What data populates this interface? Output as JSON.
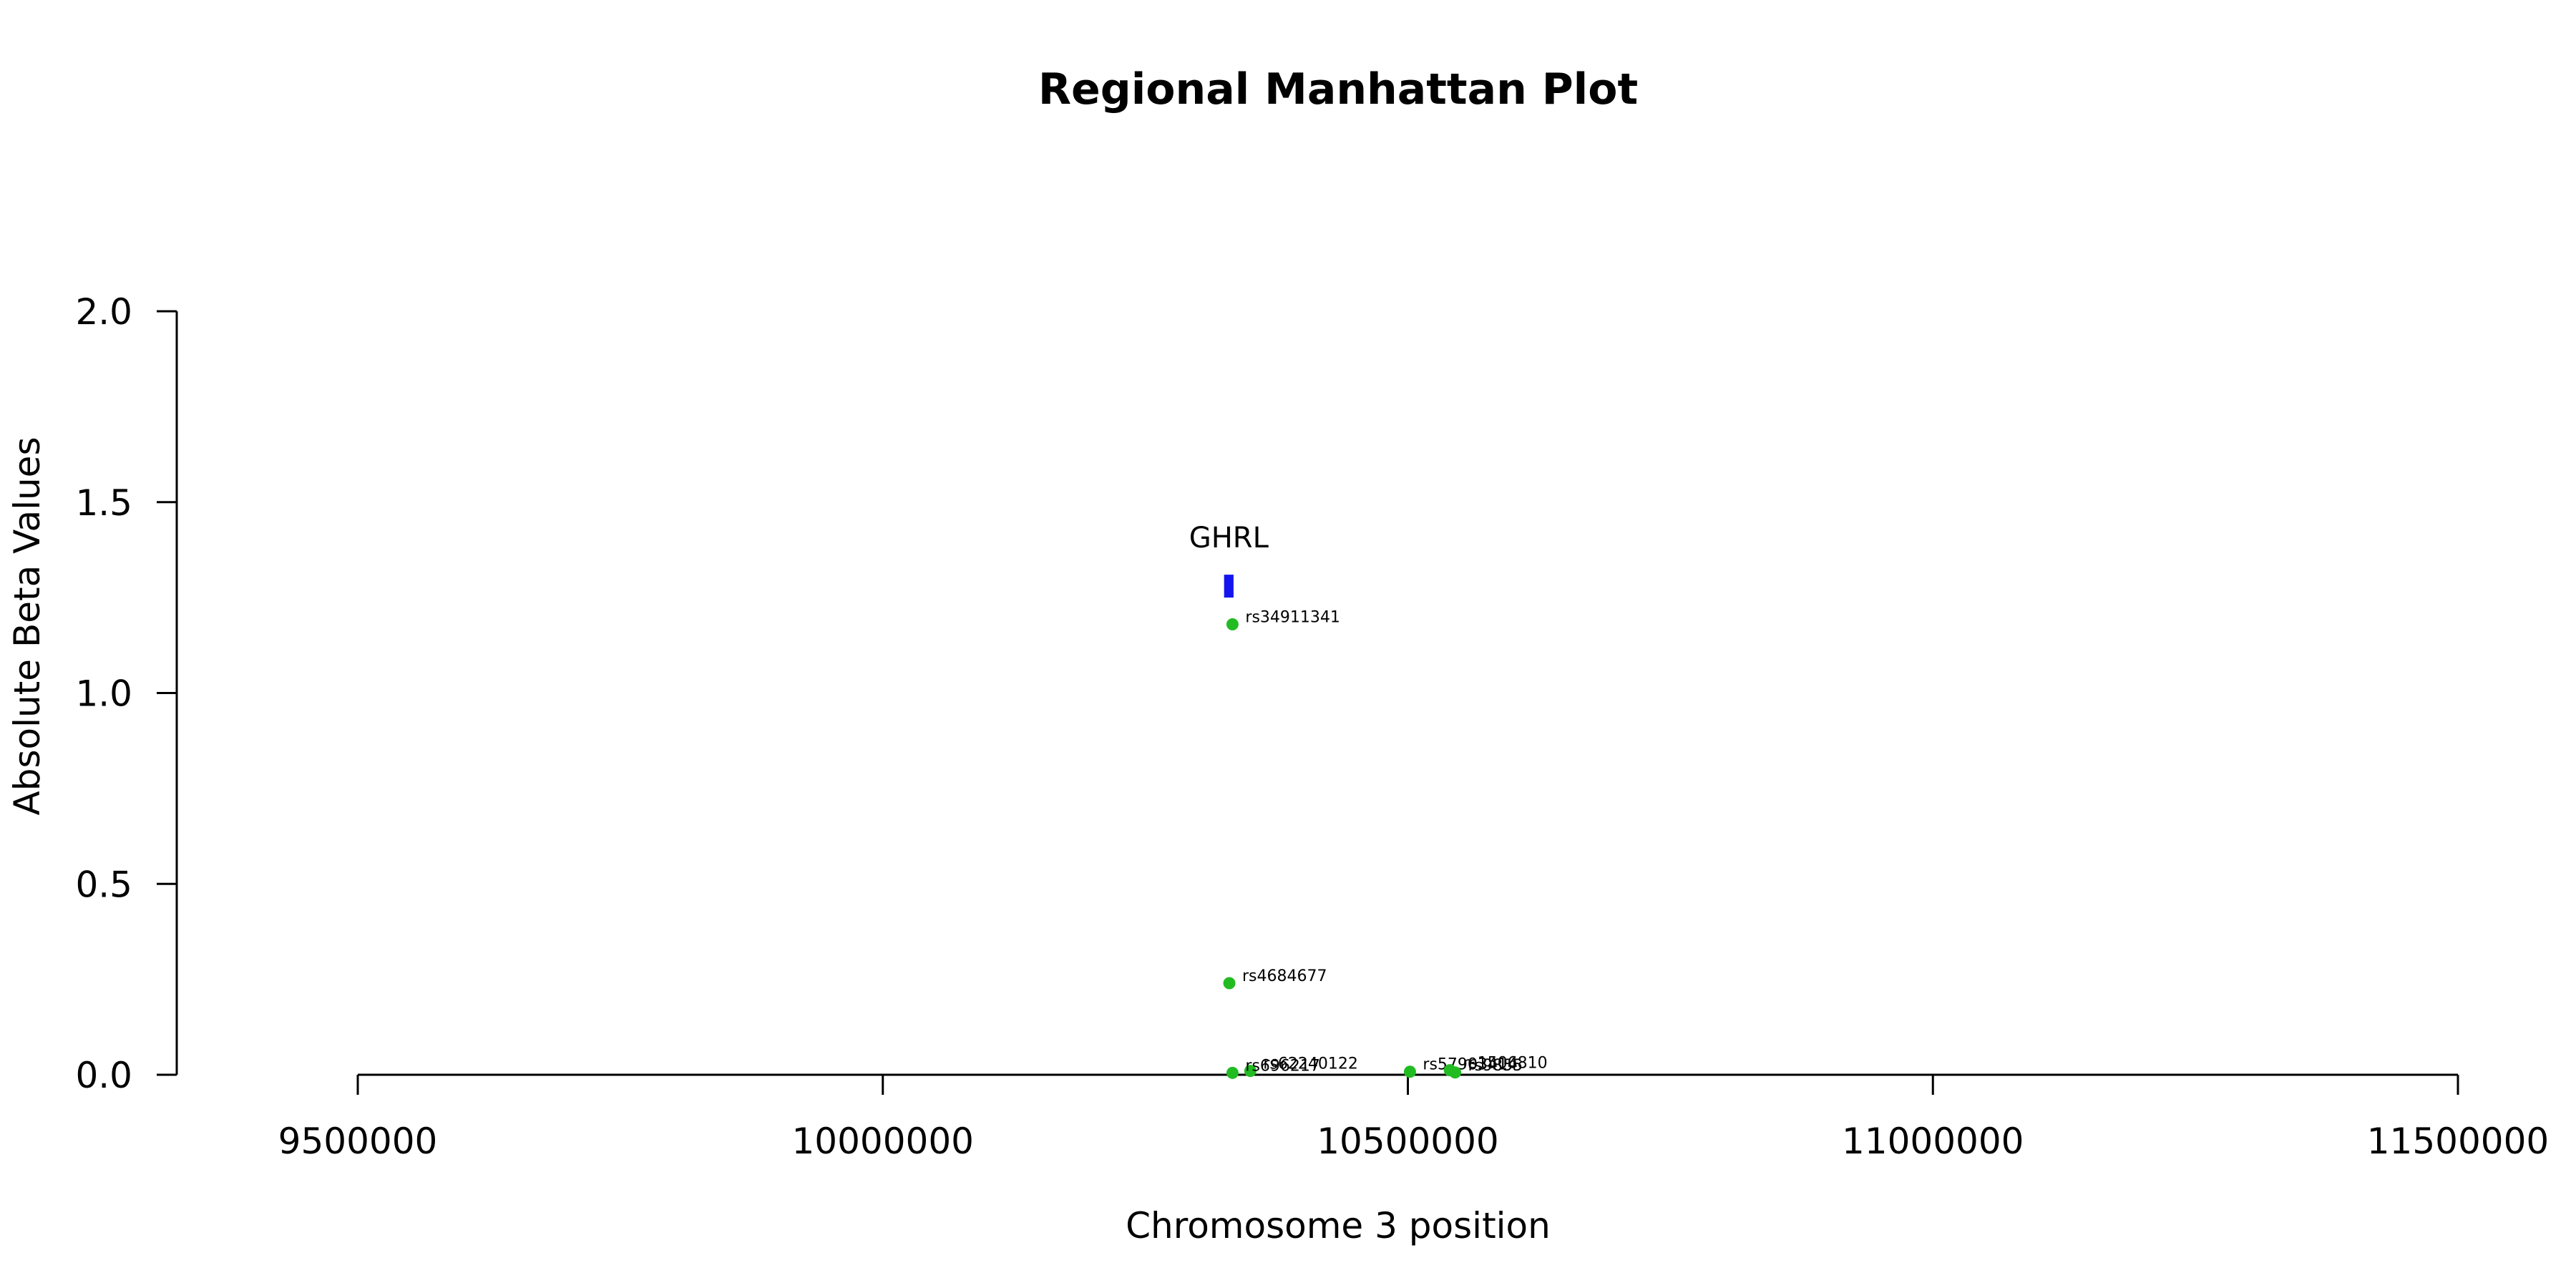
{
  "chart_data": {
    "type": "scatter",
    "title": "Regional Manhattan Plot",
    "xlabel": "Chromosome 3 position",
    "ylabel": "Absolute Beta Values",
    "xlim": [
      9500000,
      11500000
    ],
    "ylim": [
      0,
      2.0
    ],
    "xticks": [
      9500000,
      10000000,
      10500000,
      11000000,
      11500000
    ],
    "xtick_labels": [
      "9500000",
      "10000000",
      "10500000",
      "11000000",
      "11500000"
    ],
    "yticks": [
      0.0,
      0.5,
      1.0,
      1.5,
      2.0
    ],
    "ytick_labels": [
      "0.0",
      "0.5",
      "1.0",
      "1.5",
      "2.0"
    ],
    "grid": false,
    "legend": "none",
    "point_color": "#22bb22",
    "gene_color": "#1414ee",
    "points": [
      {
        "x": 10333000,
        "y": 1.18,
        "label": "rs34911341"
      },
      {
        "x": 10330000,
        "y": 0.24,
        "label": "rs4684677"
      },
      {
        "x": 10350000,
        "y": 0.01,
        "label": "rs62240122"
      },
      {
        "x": 10333000,
        "y": 0.005,
        "label": "rs696217"
      },
      {
        "x": 10502000,
        "y": 0.008,
        "label": "rs57903414"
      },
      {
        "x": 10540000,
        "y": 0.012,
        "label": "rs1506810"
      },
      {
        "x": 10545000,
        "y": 0.006,
        "label": "rs9855"
      }
    ],
    "genes": [
      {
        "name": "GHRL",
        "start": 10325000,
        "end": 10334000,
        "y_low": 1.25,
        "y_high": 1.31
      }
    ]
  }
}
